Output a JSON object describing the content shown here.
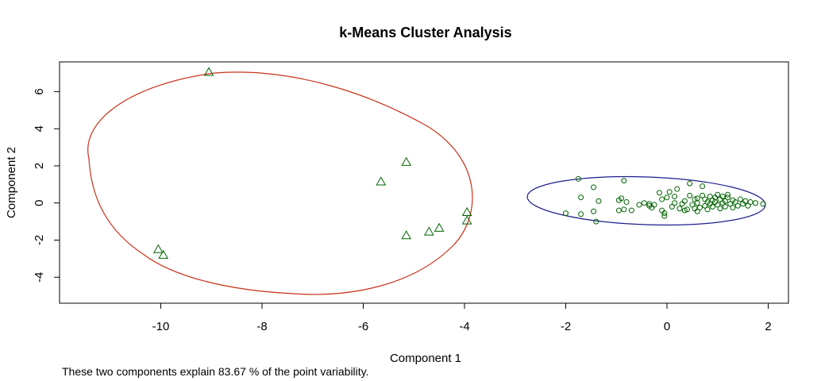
{
  "chart_data": {
    "type": "scatter",
    "title": "k-Means Cluster Analysis",
    "xlabel": "Component 1",
    "ylabel": "Component 2",
    "subtitle": "These two components explain 83.67 % of the point variability.",
    "xlim": [
      -12,
      2.4
    ],
    "ylim": [
      -5.4,
      7.6
    ],
    "x_ticks": [
      -10,
      -8,
      -6,
      -4,
      -2,
      0,
      2
    ],
    "x_tick_labels": [
      "-10",
      "-8",
      "-6",
      "-4",
      "-2",
      "0",
      "2"
    ],
    "y_ticks": [
      -4,
      -2,
      0,
      2,
      4,
      6
    ],
    "y_tick_labels": [
      "-4",
      "-2",
      "0",
      "2",
      "4",
      "6"
    ],
    "grid": false,
    "series": [
      {
        "marker": "triangle",
        "color": "#006400",
        "points": [
          [
            -9.05,
            7.05
          ],
          [
            -5.15,
            2.2
          ],
          [
            -5.65,
            1.15
          ],
          [
            -5.15,
            -1.75
          ],
          [
            -4.7,
            -1.55
          ],
          [
            -4.5,
            -1.35
          ],
          [
            -3.95,
            -0.5
          ],
          [
            -3.95,
            -0.95
          ],
          [
            -10.05,
            -2.5
          ],
          [
            -9.95,
            -2.8
          ]
        ]
      },
      {
        "marker": "circle",
        "color": "#006400",
        "points": [
          [
            -1.75,
            1.3
          ],
          [
            -1.7,
            0.3
          ],
          [
            -1.7,
            -0.6
          ],
          [
            -2.0,
            -0.55
          ],
          [
            -1.45,
            0.85
          ],
          [
            -1.45,
            -0.45
          ],
          [
            -1.4,
            -1.0
          ],
          [
            -1.35,
            0.1
          ],
          [
            -0.9,
            0.25
          ],
          [
            -0.95,
            0.15
          ],
          [
            -0.8,
            0.05
          ],
          [
            -0.85,
            -0.35
          ],
          [
            -0.95,
            -0.4
          ],
          [
            -0.85,
            1.2
          ],
          [
            -0.7,
            -0.4
          ],
          [
            -0.55,
            -0.1
          ],
          [
            -0.45,
            0.0
          ],
          [
            -0.35,
            -0.15
          ],
          [
            -0.3,
            -0.25
          ],
          [
            -0.35,
            -0.05
          ],
          [
            -0.25,
            -0.1
          ],
          [
            -0.15,
            0.55
          ],
          [
            -0.1,
            0.2
          ],
          [
            -0.1,
            -0.4
          ],
          [
            -0.05,
            -0.55
          ],
          [
            -0.05,
            -0.7
          ],
          [
            0.0,
            0.3
          ],
          [
            0.05,
            0.6
          ],
          [
            0.1,
            -0.2
          ],
          [
            0.15,
            0.35
          ],
          [
            0.15,
            0.0
          ],
          [
            0.2,
            0.75
          ],
          [
            0.25,
            -0.3
          ],
          [
            0.3,
            -0.05
          ],
          [
            0.35,
            0.1
          ],
          [
            0.4,
            -0.35
          ],
          [
            0.45,
            0.4
          ],
          [
            0.45,
            1.05
          ],
          [
            0.5,
            -0.1
          ],
          [
            0.55,
            -0.3
          ],
          [
            0.55,
            0.2
          ],
          [
            0.6,
            -0.45
          ],
          [
            0.6,
            0.0
          ],
          [
            0.65,
            -0.25
          ],
          [
            0.7,
            0.4
          ],
          [
            0.7,
            0.9
          ],
          [
            0.75,
            -0.15
          ],
          [
            0.75,
            0.2
          ],
          [
            0.8,
            -0.35
          ],
          [
            0.8,
            0.05
          ],
          [
            0.85,
            0.35
          ],
          [
            0.85,
            -0.05
          ],
          [
            0.9,
            0.15
          ],
          [
            0.9,
            -0.2
          ],
          [
            0.95,
            0.3
          ],
          [
            0.95,
            0.05
          ],
          [
            1.0,
            -0.1
          ],
          [
            1.0,
            0.45
          ],
          [
            1.05,
            0.2
          ],
          [
            1.05,
            -0.3
          ],
          [
            1.1,
            0.35
          ],
          [
            1.1,
            0.0
          ],
          [
            1.15,
            -0.2
          ],
          [
            1.15,
            0.1
          ],
          [
            1.2,
            0.3
          ],
          [
            1.25,
            -0.05
          ],
          [
            1.3,
            -0.25
          ],
          [
            1.3,
            0.15
          ],
          [
            1.35,
            0.05
          ],
          [
            1.4,
            -0.15
          ],
          [
            1.45,
            0.2
          ],
          [
            1.5,
            -0.05
          ],
          [
            1.55,
            0.1
          ],
          [
            1.6,
            -0.15
          ],
          [
            1.65,
            0.05
          ],
          [
            1.75,
            0.0
          ],
          [
            1.9,
            -0.05
          ],
          [
            1.2,
            0.45
          ],
          [
            0.6,
            0.25
          ],
          [
            0.35,
            -0.4
          ]
        ]
      }
    ],
    "ellipses": [
      {
        "cluster": 1,
        "color": "#c83218",
        "cx": -7.4,
        "cy": 1.1,
        "rx_equiv": 4.2,
        "note": "ellipse enclosing triangles"
      },
      {
        "cluster": 2,
        "color": "#1c1c8c",
        "cx": -0.05,
        "cy": 0.05,
        "rx_equiv": 2.35,
        "note": "ellipse enclosing circles"
      }
    ]
  }
}
